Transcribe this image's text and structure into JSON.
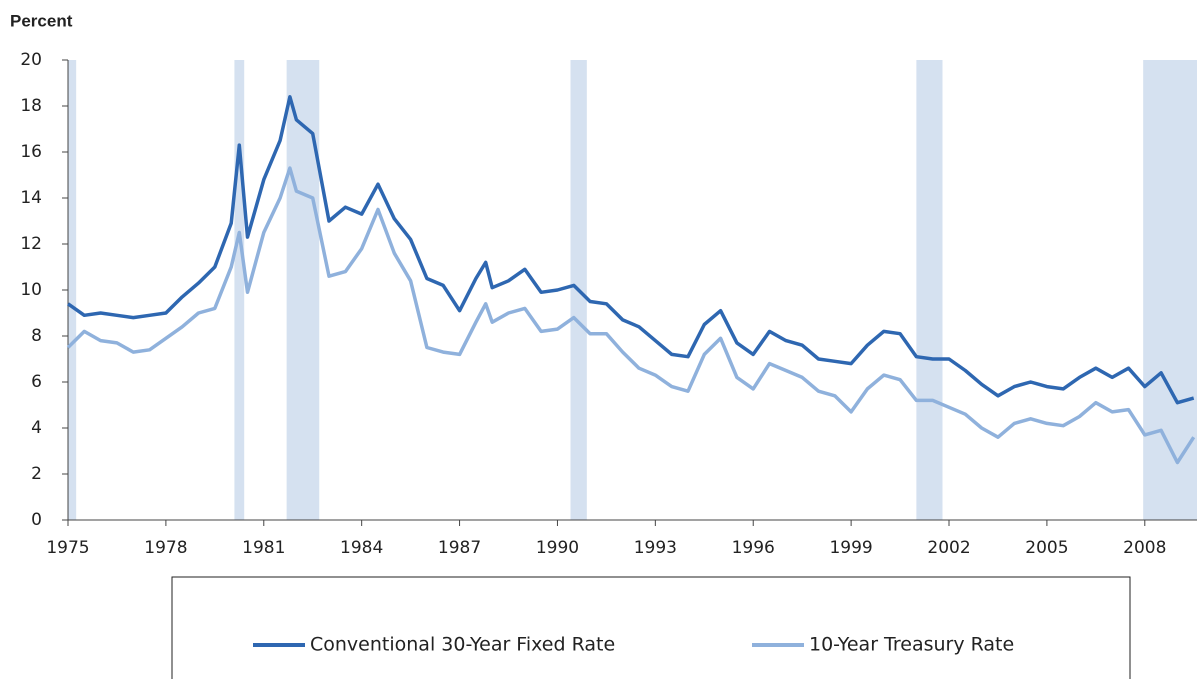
{
  "chart_data": {
    "type": "line",
    "y_axis_label": "Percent",
    "x": [
      1975,
      1975.5,
      1976,
      1976.5,
      1977,
      1977.5,
      1978,
      1978.5,
      1979,
      1979.5,
      1980,
      1980.25,
      1980.5,
      1981,
      1981.5,
      1981.8,
      1982,
      1982.5,
      1983,
      1983.5,
      1984,
      1984.5,
      1985,
      1985.5,
      1986,
      1986.5,
      1987,
      1987.5,
      1987.8,
      1988,
      1988.5,
      1989,
      1989.5,
      1990,
      1990.5,
      1991,
      1991.5,
      1992,
      1992.5,
      1993,
      1993.5,
      1994,
      1994.5,
      1995,
      1995.5,
      1996,
      1996.5,
      1997,
      1997.5,
      1998,
      1998.5,
      1999,
      1999.5,
      2000,
      2000.5,
      2001,
      2001.5,
      2002,
      2002.5,
      2003,
      2003.5,
      2004,
      2004.5,
      2005,
      2005.5,
      2006,
      2006.5,
      2007,
      2007.5,
      2008,
      2008.5,
      2009,
      2009.5
    ],
    "series": [
      {
        "name": "Conventional 30-Year Fixed Rate",
        "color": "#2e67b1",
        "values": [
          9.4,
          8.9,
          9.0,
          8.9,
          8.8,
          8.9,
          9.0,
          9.7,
          10.3,
          11.0,
          12.9,
          16.3,
          12.3,
          14.8,
          16.5,
          18.4,
          17.4,
          16.8,
          13.0,
          13.6,
          13.3,
          14.6,
          13.1,
          12.2,
          10.5,
          10.2,
          9.1,
          10.5,
          11.2,
          10.1,
          10.4,
          10.9,
          9.9,
          10.0,
          10.2,
          9.5,
          9.4,
          8.7,
          8.4,
          7.8,
          7.2,
          7.1,
          8.5,
          9.1,
          7.7,
          7.2,
          8.2,
          7.8,
          7.6,
          7.0,
          6.9,
          6.8,
          7.6,
          8.2,
          8.1,
          7.1,
          7.0,
          7.0,
          6.5,
          5.9,
          5.4,
          5.8,
          6.0,
          5.8,
          5.7,
          6.2,
          6.6,
          6.2,
          6.6,
          5.8,
          6.4,
          5.1,
          5.3
        ]
      },
      {
        "name": "10-Year Treasury Rate",
        "color": "#8fb1dc",
        "values": [
          7.5,
          8.2,
          7.8,
          7.7,
          7.3,
          7.4,
          7.9,
          8.4,
          9.0,
          9.2,
          11.0,
          12.5,
          9.9,
          12.5,
          14.0,
          15.3,
          14.3,
          14.0,
          10.6,
          10.8,
          11.8,
          13.5,
          11.6,
          10.4,
          7.5,
          7.3,
          7.2,
          8.6,
          9.4,
          8.6,
          9.0,
          9.2,
          8.2,
          8.3,
          8.8,
          8.1,
          8.1,
          7.3,
          6.6,
          6.3,
          5.8,
          5.6,
          7.2,
          7.9,
          6.2,
          5.7,
          6.8,
          6.5,
          6.2,
          5.6,
          5.4,
          4.7,
          5.7,
          6.3,
          6.1,
          5.2,
          5.2,
          4.9,
          4.6,
          4.0,
          3.6,
          4.2,
          4.4,
          4.2,
          4.1,
          4.5,
          5.1,
          4.7,
          4.8,
          3.7,
          3.9,
          2.5,
          3.6
        ]
      }
    ],
    "shaded_periods": [
      [
        1975,
        1975.25
      ],
      [
        1980.1,
        1980.4
      ],
      [
        1981.7,
        1982.7
      ],
      [
        1990.4,
        1990.9
      ],
      [
        2001.0,
        2001.8
      ],
      [
        2007.95,
        2009.6
      ]
    ],
    "shade_color": "#d5e1f0",
    "xlim": [
      1975,
      2009.6
    ],
    "xticks": [
      1975,
      1978,
      1981,
      1984,
      1987,
      1990,
      1993,
      1996,
      1999,
      2002,
      2005,
      2008
    ],
    "ylim": [
      0,
      20
    ],
    "yticks": [
      0,
      2,
      4,
      6,
      8,
      10,
      12,
      14,
      16,
      18,
      20
    ],
    "legend": "bottom"
  }
}
